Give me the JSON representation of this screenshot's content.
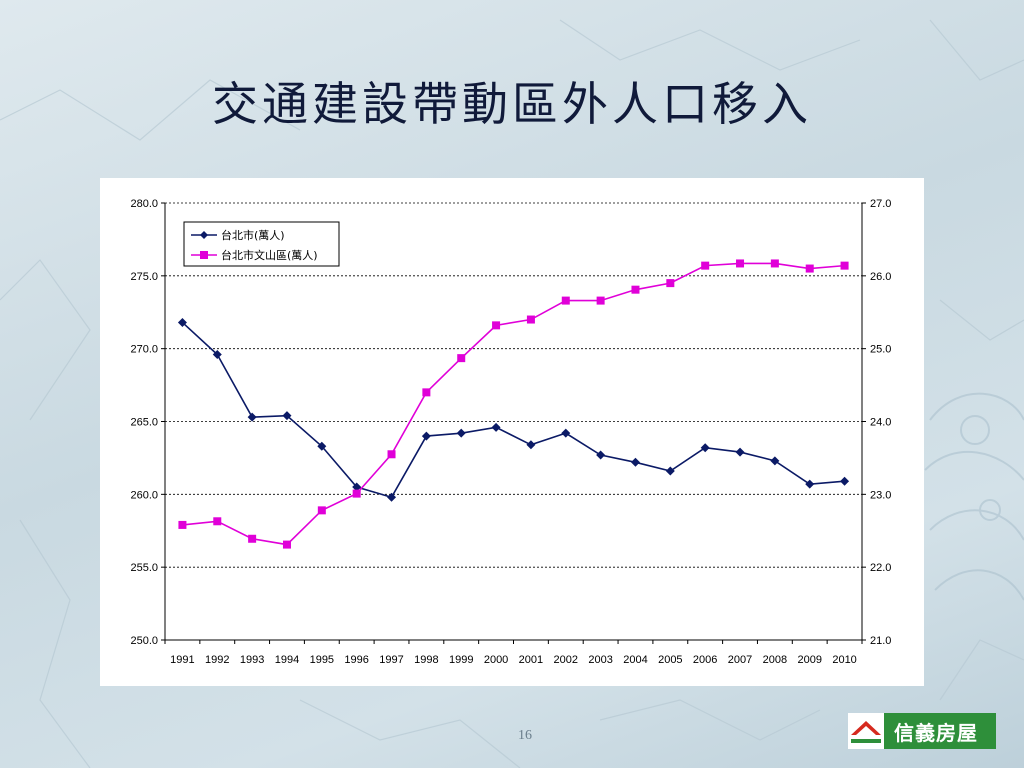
{
  "slide": {
    "title": "交通建設帶動區外人口移入",
    "page_number": "16",
    "logo_text": "信義房屋"
  },
  "colors": {
    "series_taipei": "#0b1a66",
    "series_wenshan": "#e000d8",
    "logo_green": "#2e8f3a",
    "logo_red": "#d62a1f"
  },
  "icons": {
    "logo": "sinyi-roof-logo-icon"
  },
  "chart_data": {
    "type": "line",
    "title": "",
    "x": [
      "1991",
      "1992",
      "1993",
      "1994",
      "1995",
      "1996",
      "1997",
      "1998",
      "1999",
      "2000",
      "2001",
      "2002",
      "2003",
      "2004",
      "2005",
      "2006",
      "2007",
      "2008",
      "2009",
      "2010"
    ],
    "y_left": {
      "min": 250.0,
      "max": 280.0,
      "ticks": [
        "250.0",
        "255.0",
        "260.0",
        "265.0",
        "270.0",
        "275.0",
        "280.0"
      ]
    },
    "y_right": {
      "min": 21.0,
      "max": 27.0,
      "ticks": [
        "21.0",
        "22.0",
        "23.0",
        "24.0",
        "25.0",
        "26.0",
        "27.0"
      ]
    },
    "grid": "horizontal dotted",
    "legend_position": "top-left",
    "series": [
      {
        "name": "台北市(萬人)",
        "axis": "left",
        "marker": "diamond",
        "values": [
          271.8,
          269.6,
          265.3,
          265.4,
          263.3,
          260.5,
          259.8,
          264.0,
          264.2,
          264.6,
          263.4,
          264.2,
          262.7,
          262.2,
          261.6,
          263.2,
          262.9,
          262.3,
          260.7,
          260.9
        ]
      },
      {
        "name": "台北市文山區(萬人)",
        "axis": "right",
        "marker": "square",
        "values": [
          22.58,
          22.63,
          22.39,
          22.31,
          22.78,
          23.01,
          23.55,
          24.4,
          24.87,
          25.32,
          25.4,
          25.66,
          25.66,
          25.81,
          25.9,
          26.14,
          26.17,
          26.17,
          26.1,
          26.14
        ]
      }
    ]
  }
}
